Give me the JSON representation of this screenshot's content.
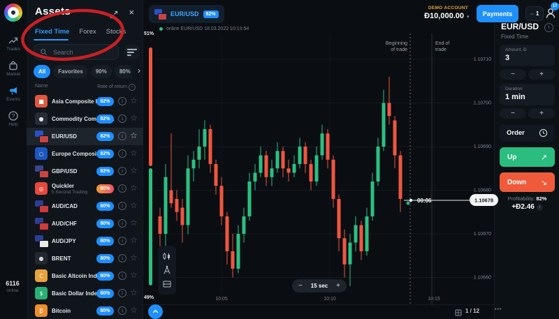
{
  "colors": {
    "accent": "#1f8ffa",
    "up": "#2cbf81",
    "down": "#ef5640",
    "gold": "#e8a33b",
    "annotation": "#d42127"
  },
  "icons": {
    "close": "×",
    "chevron_right": "›",
    "dropdown": "▾",
    "up_arrow": "↗",
    "down_arrow": "↘",
    "star": "☆",
    "info": "i",
    "more": "•••"
  },
  "sidebar": {
    "items": [
      {
        "id": "trades",
        "label": "Trades",
        "icon": "trades-icon"
      },
      {
        "id": "market",
        "label": "Market",
        "icon": "market-icon"
      },
      {
        "id": "events",
        "label": "Events",
        "icon": "events-icon"
      },
      {
        "id": "help",
        "label": "Help",
        "icon": "help-icon"
      }
    ],
    "online_count": "6116",
    "online_label": "online"
  },
  "assets_panel": {
    "title": "Assets",
    "tabs": [
      {
        "label": "Fixed Time",
        "active": true
      },
      {
        "label": "Forex",
        "active": false
      },
      {
        "label": "Stocks",
        "active": false
      }
    ],
    "search_placeholder": "Search",
    "filters": [
      {
        "label": "All",
        "active": true
      },
      {
        "label": "Favorites",
        "active": false
      },
      {
        "label": "90%",
        "active": false
      },
      {
        "label": "80%",
        "active": false
      }
    ],
    "columns": {
      "name": "Name",
      "rate": "Rate of return"
    },
    "rows": [
      {
        "name": "Asia Composite Index",
        "return": "82%",
        "icon": {
          "type": "solid",
          "bg": "#e0573f",
          "glyph": "■",
          "fg": "#ffffff"
        }
      },
      {
        "name": "Commodity Composit...",
        "return": "82%",
        "icon": {
          "type": "solid",
          "bg": "#272c34",
          "glyph": "●",
          "fg": "#dfe5ea"
        }
      },
      {
        "name": "EUR/USD",
        "return": "82%",
        "selected": true,
        "icon": {
          "type": "pair",
          "c1": "#2b4fc8",
          "c2": "#c84444"
        }
      },
      {
        "name": "Europe Composite In...",
        "return": "82%",
        "icon": {
          "type": "solid",
          "bg": "#1a57c8",
          "glyph": "○",
          "fg": "#ffd24a"
        }
      },
      {
        "name": "GBP/USD",
        "return": "82%",
        "icon": {
          "type": "pair",
          "c1": "#39478f",
          "c2": "#c84444"
        }
      },
      {
        "name": "Quickler",
        "sub": "5 Second Trading",
        "return": "80%",
        "gradient": true,
        "icon": {
          "type": "solid",
          "bg": "#e8483c",
          "glyph": "◎",
          "fg": "#ffffff"
        }
      },
      {
        "name": "AUD/CAD",
        "return": "80%",
        "icon": {
          "type": "pair",
          "c1": "#2e3e96",
          "c2": "#cc3b3b"
        }
      },
      {
        "name": "AUD/CHF",
        "return": "80%",
        "icon": {
          "type": "pair",
          "c1": "#2e3e96",
          "c2": "#d03b3b"
        }
      },
      {
        "name": "AUD/JPY",
        "return": "80%",
        "icon": {
          "type": "pair",
          "c1": "#2e3e96",
          "c2": "#e9e9e9"
        }
      },
      {
        "name": "BRENT",
        "return": "80%",
        "icon": {
          "type": "solid",
          "bg": "#23272e",
          "glyph": "●",
          "fg": "#cfd6dd"
        }
      },
      {
        "name": "Basic Altcoin Index",
        "return": "80%",
        "icon": {
          "type": "solid",
          "bg": "#e8a33c",
          "glyph": "C",
          "fg": "#ffffff"
        }
      },
      {
        "name": "Basic Dollar Index",
        "return": "80%",
        "icon": {
          "type": "solid",
          "bg": "#28b173",
          "glyph": "$",
          "fg": "#ffffff"
        }
      },
      {
        "name": "Bitcoin",
        "return": "80%",
        "icon": {
          "type": "solid",
          "bg": "#ef8e2e",
          "glyph": "₿",
          "fg": "#ffffff"
        }
      }
    ]
  },
  "topbar": {
    "symbol": "EUR/USD",
    "symbol_return": "82%",
    "status": "online EUR/USD 18.03.2022 10:13:54",
    "account_label": "DEMO ACCOUNT",
    "balance": "Đ10,000.00",
    "payments": "Payments",
    "windows_count": "1",
    "notifications": "17"
  },
  "chart": {
    "interval": "15 sec",
    "minus": "−",
    "plus": "+",
    "pagination": "1 / 12"
  },
  "chart_data": {
    "type": "candlestick",
    "title": "EUR/USD Fixed Time chart",
    "interval": "15 sec",
    "price_scale": {
      "base": 1.106,
      "unit": 1e-05
    },
    "y_ticks": [
      "1.10710",
      "1.10700",
      "1.10690",
      "1.10680",
      "1.10670",
      "1.10660"
    ],
    "x_ticks": [
      "10:05",
      "10:10",
      "10:15"
    ],
    "current_price": "1.10678",
    "countdown": "00:06",
    "sentiment": {
      "up": "51%",
      "down": "49%"
    },
    "annotations": {
      "begin_line1": "Beginning",
      "begin_line2": "of trade",
      "end_line1": "End of",
      "end_line2": "trade"
    },
    "candles": [
      [
        74,
        76,
        62,
        70
      ],
      [
        70,
        86,
        64,
        83
      ],
      [
        80,
        93,
        76,
        77
      ],
      [
        78,
        80,
        73,
        75
      ],
      [
        76,
        78,
        68,
        72
      ],
      [
        72,
        88,
        70,
        85
      ],
      [
        85,
        89,
        82,
        87
      ],
      [
        87,
        94,
        85,
        90
      ],
      [
        90,
        96,
        87,
        94
      ],
      [
        94,
        95,
        84,
        86
      ],
      [
        86,
        87,
        79,
        81
      ],
      [
        81,
        83,
        72,
        74
      ],
      [
        74,
        75,
        63,
        66
      ],
      [
        66,
        70,
        60,
        62
      ],
      [
        62,
        72,
        61,
        70
      ],
      [
        70,
        76,
        68,
        74
      ],
      [
        74,
        84,
        73,
        82
      ],
      [
        82,
        86,
        80,
        84
      ],
      [
        84,
        90,
        83,
        88
      ],
      [
        88,
        89,
        81,
        83
      ],
      [
        83,
        87,
        81,
        85
      ],
      [
        85,
        91,
        84,
        89
      ],
      [
        89,
        90,
        83,
        85
      ],
      [
        85,
        87,
        82,
        84
      ],
      [
        84,
        88,
        83,
        86
      ],
      [
        86,
        92,
        85,
        90
      ],
      [
        90,
        91,
        84,
        86
      ],
      [
        86,
        87,
        80,
        82
      ],
      [
        82,
        90,
        81,
        88
      ],
      [
        88,
        95,
        87,
        93
      ],
      [
        93,
        94,
        85,
        87
      ],
      [
        87,
        88,
        76,
        78
      ],
      [
        78,
        79,
        66,
        69
      ],
      [
        69,
        71,
        60,
        63
      ],
      [
        63,
        70,
        58,
        68
      ],
      [
        68,
        74,
        66,
        72
      ],
      [
        72,
        73,
        64,
        66
      ],
      [
        66,
        76,
        65,
        74
      ],
      [
        74,
        84,
        73,
        82
      ],
      [
        82,
        92,
        81,
        90
      ],
      [
        90,
        103,
        89,
        100
      ],
      [
        100,
        106,
        95,
        97
      ],
      [
        96,
        97,
        85,
        88
      ],
      [
        88,
        89,
        75,
        78
      ]
    ]
  },
  "trade_panel": {
    "symbol": "EUR/USD",
    "mode": "Fixed Time",
    "amount_label": "Amount, Đ",
    "amount_value": "3",
    "duration_label": "Duration",
    "duration_value": "1 min",
    "minus": "−",
    "plus": "+",
    "order": "Order",
    "up": "Up",
    "down": "Down",
    "profitability_label": "Profitability:",
    "profitability_value": "82%",
    "profit": "+Đ2.46"
  }
}
